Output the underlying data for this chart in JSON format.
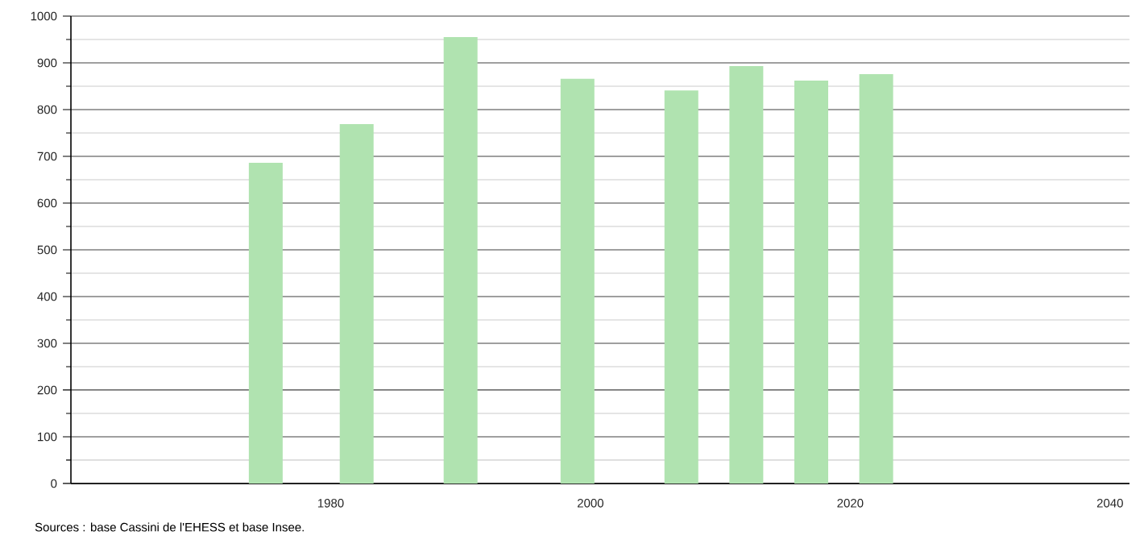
{
  "chart_data": {
    "type": "bar",
    "x": [
      1975,
      1982,
      1990,
      1999,
      2007,
      2012,
      2017,
      2022
    ],
    "values": [
      686,
      769,
      955,
      866,
      841,
      893,
      862,
      876
    ],
    "color": "#b0e3b0",
    "xlim": [
      1960,
      2041.5
    ],
    "xticks": [
      1980,
      2000,
      2020,
      2040
    ],
    "ylim": [
      0,
      1000
    ],
    "yticks": [
      0,
      100,
      200,
      300,
      400,
      500,
      600,
      700,
      800,
      900,
      1000
    ],
    "grid": "y",
    "annotations": [
      "Sources : base Cassini de l'EHESS et base Insee."
    ]
  }
}
